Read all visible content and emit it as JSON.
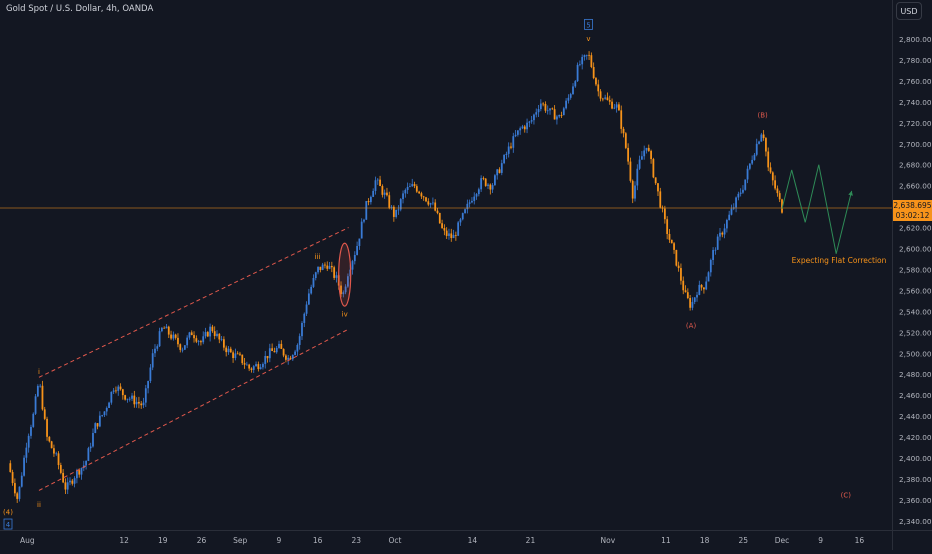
{
  "header": {
    "symbol_line": "Gold Spot / U.S. Dollar, 4h, OANDA",
    "currency": "USD"
  },
  "price_label": {
    "value": "2,638.695",
    "countdown": "03:02:12"
  },
  "colors": {
    "background": "#131722",
    "up": "#3a7bd5",
    "down": "#f7931a",
    "channel": "#e0584c",
    "projection": "#2e8b57",
    "price_line": "#f7931a",
    "wave_label": "#f7931a",
    "correction_label": "#e05a4d"
  },
  "chart_data": {
    "type": "candlestick",
    "title": "Gold Spot / U.S. Dollar, 4h, OANDA",
    "ylim": [
      2330,
      2815
    ],
    "y_ticks": [
      "2,340.000",
      "2,360.000",
      "2,380.000",
      "2,400.000",
      "2,420.000",
      "2,440.000",
      "2,460.000",
      "2,480.000",
      "2,500.000",
      "2,520.000",
      "2,540.000",
      "2,560.000",
      "2,580.000",
      "2,600.000",
      "2,620.000",
      "2,640.000",
      "2,660.000",
      "2,680.000",
      "2,700.000",
      "2,720.000",
      "2,740.000",
      "2,760.000",
      "2,780.000",
      "2,800.000"
    ],
    "x_ticks": [
      "Aug",
      "12",
      "19",
      "26",
      "Sep",
      "9",
      "16",
      "23",
      "Oct",
      "14",
      "21",
      "Nov",
      "11",
      "18",
      "25",
      "Dec",
      "9",
      "16"
    ],
    "x_tick_index": [
      1,
      6,
      8,
      10,
      12,
      14,
      16,
      18,
      20,
      24,
      27,
      31,
      34,
      36,
      38,
      40,
      42,
      44
    ],
    "last_price": 2638.695,
    "path_points": [
      {
        "i": 0,
        "p": 2395
      },
      {
        "i": 0.5,
        "p": 2360
      },
      {
        "i": 1.0,
        "p": 2420
      },
      {
        "i": 1.3,
        "p": 2440
      },
      {
        "i": 1.6,
        "p": 2475
      },
      {
        "i": 2.0,
        "p": 2420
      },
      {
        "i": 2.5,
        "p": 2400
      },
      {
        "i": 3.0,
        "p": 2370
      },
      {
        "i": 3.5,
        "p": 2385
      },
      {
        "i": 4.0,
        "p": 2395
      },
      {
        "i": 4.5,
        "p": 2430
      },
      {
        "i": 5.0,
        "p": 2445
      },
      {
        "i": 5.5,
        "p": 2470
      },
      {
        "i": 6.0,
        "p": 2460
      },
      {
        "i": 6.5,
        "p": 2455
      },
      {
        "i": 7.0,
        "p": 2450
      },
      {
        "i": 7.5,
        "p": 2500
      },
      {
        "i": 8.0,
        "p": 2525
      },
      {
        "i": 8.5,
        "p": 2515
      },
      {
        "i": 9.0,
        "p": 2505
      },
      {
        "i": 9.5,
        "p": 2520
      },
      {
        "i": 10.0,
        "p": 2510
      },
      {
        "i": 10.5,
        "p": 2525
      },
      {
        "i": 11.0,
        "p": 2510
      },
      {
        "i": 11.5,
        "p": 2500
      },
      {
        "i": 12.0,
        "p": 2495
      },
      {
        "i": 12.5,
        "p": 2485
      },
      {
        "i": 13.0,
        "p": 2490
      },
      {
        "i": 13.5,
        "p": 2500
      },
      {
        "i": 14.0,
        "p": 2505
      },
      {
        "i": 14.5,
        "p": 2495
      },
      {
        "i": 15.0,
        "p": 2510
      },
      {
        "i": 15.5,
        "p": 2555
      },
      {
        "i": 16.0,
        "p": 2580
      },
      {
        "i": 16.5,
        "p": 2585
      },
      {
        "i": 17.0,
        "p": 2570
      },
      {
        "i": 17.3,
        "p": 2555
      },
      {
        "i": 17.6,
        "p": 2580
      },
      {
        "i": 18.0,
        "p": 2600
      },
      {
        "i": 18.5,
        "p": 2640
      },
      {
        "i": 19.0,
        "p": 2665
      },
      {
        "i": 19.5,
        "p": 2650
      },
      {
        "i": 20.0,
        "p": 2630
      },
      {
        "i": 20.5,
        "p": 2655
      },
      {
        "i": 21.0,
        "p": 2660
      },
      {
        "i": 21.5,
        "p": 2650
      },
      {
        "i": 22.0,
        "p": 2640
      },
      {
        "i": 22.5,
        "p": 2615
      },
      {
        "i": 23.0,
        "p": 2610
      },
      {
        "i": 23.5,
        "p": 2630
      },
      {
        "i": 24.0,
        "p": 2650
      },
      {
        "i": 24.5,
        "p": 2665
      },
      {
        "i": 25.0,
        "p": 2660
      },
      {
        "i": 25.5,
        "p": 2680
      },
      {
        "i": 26.0,
        "p": 2700
      },
      {
        "i": 26.5,
        "p": 2715
      },
      {
        "i": 27.0,
        "p": 2720
      },
      {
        "i": 27.5,
        "p": 2740
      },
      {
        "i": 28.0,
        "p": 2730
      },
      {
        "i": 28.5,
        "p": 2725
      },
      {
        "i": 29.0,
        "p": 2745
      },
      {
        "i": 29.5,
        "p": 2775
      },
      {
        "i": 30.0,
        "p": 2785
      },
      {
        "i": 30.5,
        "p": 2750
      },
      {
        "i": 31.0,
        "p": 2740
      },
      {
        "i": 31.5,
        "p": 2735
      },
      {
        "i": 32.0,
        "p": 2690
      },
      {
        "i": 32.3,
        "p": 2650
      },
      {
        "i": 32.6,
        "p": 2680
      },
      {
        "i": 33.0,
        "p": 2700
      },
      {
        "i": 33.5,
        "p": 2660
      },
      {
        "i": 34.0,
        "p": 2620
      },
      {
        "i": 34.5,
        "p": 2590
      },
      {
        "i": 35.0,
        "p": 2555
      },
      {
        "i": 35.3,
        "p": 2545
      },
      {
        "i": 35.6,
        "p": 2560
      },
      {
        "i": 36.0,
        "p": 2565
      },
      {
        "i": 36.5,
        "p": 2600
      },
      {
        "i": 37.0,
        "p": 2620
      },
      {
        "i": 37.5,
        "p": 2640
      },
      {
        "i": 38.0,
        "p": 2660
      },
      {
        "i": 38.5,
        "p": 2690
      },
      {
        "i": 39.0,
        "p": 2715
      },
      {
        "i": 39.3,
        "p": 2675
      },
      {
        "i": 39.6,
        "p": 2660
      },
      {
        "i": 40.0,
        "p": 2638
      }
    ],
    "channel": [
      {
        "from": {
          "i": 1.6,
          "p": 2477
        },
        "to": {
          "i": 17.6,
          "p": 2620
        }
      },
      {
        "from": {
          "i": 1.6,
          "p": 2369
        },
        "to": {
          "i": 17.6,
          "p": 2523
        }
      }
    ],
    "projection": [
      {
        "i": 40.0,
        "p": 2638
      },
      {
        "i": 40.5,
        "p": 2675
      },
      {
        "i": 41.2,
        "p": 2625
      },
      {
        "i": 41.9,
        "p": 2680
      },
      {
        "i": 42.8,
        "p": 2595
      },
      {
        "i": 43.6,
        "p": 2655
      }
    ],
    "ellipse": {
      "i": 17.4,
      "p": 2575,
      "dp": 30
    },
    "wave_labels": [
      {
        "text": "(4)",
        "i": 0,
        "p": 2348,
        "color": "down"
      },
      {
        "text": "i",
        "i": 1.6,
        "p": 2482,
        "color": "down"
      },
      {
        "text": "ii",
        "i": 1.6,
        "p": 2355,
        "color": "down"
      },
      {
        "text": "iii",
        "i": 16.0,
        "p": 2592,
        "color": "down"
      },
      {
        "text": "iv",
        "i": 17.4,
        "p": 2537,
        "color": "down"
      },
      {
        "text": "v",
        "i": 30.0,
        "p": 2800,
        "color": "down"
      },
      {
        "text": "5",
        "i": 30.0,
        "p": 2813,
        "color": "up",
        "boxed": true
      },
      {
        "text": "4",
        "i": 0,
        "p": 2336,
        "color": "up",
        "boxed": true
      },
      {
        "text": "(A)",
        "i": 35.3,
        "p": 2526,
        "color": "correction"
      },
      {
        "text": "(B)",
        "i": 39.0,
        "p": 2727,
        "color": "correction"
      },
      {
        "text": "(C)",
        "i": 43.3,
        "p": 2364,
        "color": "correction"
      }
    ],
    "annotation": {
      "text": "Expecting Flat Correction",
      "i": 40.5,
      "p": 2586
    }
  }
}
